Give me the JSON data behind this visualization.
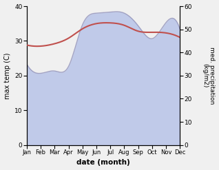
{
  "months": [
    "Jan",
    "Feb",
    "Mar",
    "Apr",
    "May",
    "Jun",
    "Jul",
    "Aug",
    "Sep",
    "Oct",
    "Nov",
    "Dec"
  ],
  "max_temp": [
    28.8,
    28.5,
    29.2,
    30.8,
    33.5,
    35.0,
    35.2,
    34.5,
    32.8,
    32.5,
    32.3,
    31.0
  ],
  "precipitation": [
    35.0,
    31.0,
    32.0,
    34.0,
    52.0,
    57.0,
    57.5,
    57.0,
    51.5,
    46.0,
    53.0,
    50.0
  ],
  "temp_color": "#c0504d",
  "precip_fill_color": "#b8c4e8",
  "precip_line_color": "#9090b8",
  "precip_fill_alpha": 0.85,
  "xlabel": "date (month)",
  "ylabel_left": "max temp (C)",
  "ylabel_right": "med. precipitation\n(kg/m2)",
  "ylim_left": [
    0,
    40
  ],
  "ylim_right": [
    0,
    60
  ],
  "yticks_left": [
    0,
    10,
    20,
    30,
    40
  ],
  "yticks_right": [
    0,
    10,
    20,
    30,
    40,
    50,
    60
  ],
  "bg_color": "#f0f0f0",
  "plot_bg_color": "#ffffff"
}
